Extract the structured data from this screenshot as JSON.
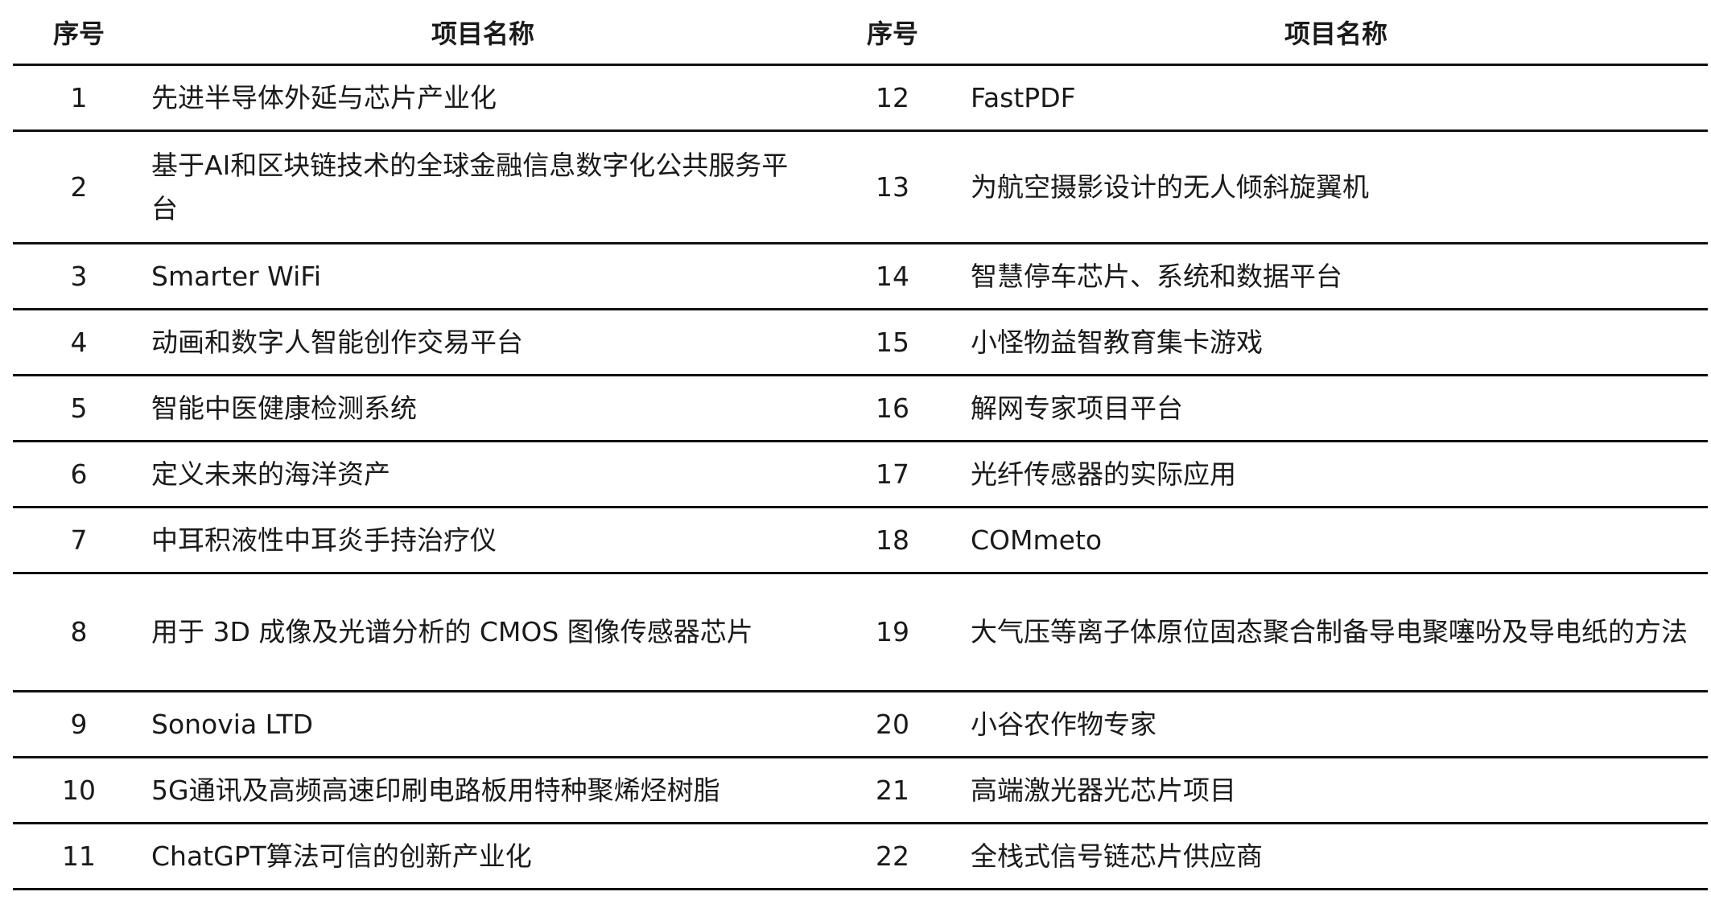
{
  "headers": {
    "seq": "序号",
    "name": "项目名称"
  },
  "rows": [
    {
      "left": {
        "num": "1",
        "name": "先进半导体外延与芯片产业化"
      },
      "right": {
        "num": "12",
        "name": "FastPDF"
      }
    },
    {
      "left": {
        "num": "2",
        "name": "基于AI和区块链技术的全球金融信息数字化公共服务平台"
      },
      "right": {
        "num": "13",
        "name": "为航空摄影设计的无人倾斜旋翼机"
      }
    },
    {
      "left": {
        "num": "3",
        "name": "Smarter WiFi"
      },
      "right": {
        "num": "14",
        "name": "智慧停车芯片、系统和数据平台"
      }
    },
    {
      "left": {
        "num": "4",
        "name": "动画和数字人智能创作交易平台"
      },
      "right": {
        "num": "15",
        "name": "小怪物益智教育集卡游戏"
      }
    },
    {
      "left": {
        "num": "5",
        "name": "智能中医健康检测系统"
      },
      "right": {
        "num": "16",
        "name": "解网专家项目平台"
      }
    },
    {
      "left": {
        "num": "6",
        "name": "定义未来的海洋资产"
      },
      "right": {
        "num": "17",
        "name": "光纤传感器的实际应用"
      }
    },
    {
      "left": {
        "num": "7",
        "name": "中耳积液性中耳炎手持治疗仪"
      },
      "right": {
        "num": "18",
        "name": "COMmeto"
      }
    },
    {
      "left": {
        "num": "8",
        "name": "用于 3D 成像及光谱分析的 CMOS 图像传感器芯片"
      },
      "right": {
        "num": "19",
        "name": "大气压等离子体原位固态聚合制备导电聚噻吩及导电纸的方法"
      }
    },
    {
      "left": {
        "num": "9",
        "name": "Sonovia LTD"
      },
      "right": {
        "num": "20",
        "name": "小谷农作物专家"
      }
    },
    {
      "left": {
        "num": "10",
        "name": "5G通讯及高频高速印刷电路板用特种聚烯烃树脂"
      },
      "right": {
        "num": "21",
        "name": "高端激光器光芯片项目"
      }
    },
    {
      "left": {
        "num": "11",
        "name": "ChatGPT算法可信的创新产业化"
      },
      "right": {
        "num": "22",
        "name": "全栈式信号链芯片供应商"
      }
    }
  ]
}
